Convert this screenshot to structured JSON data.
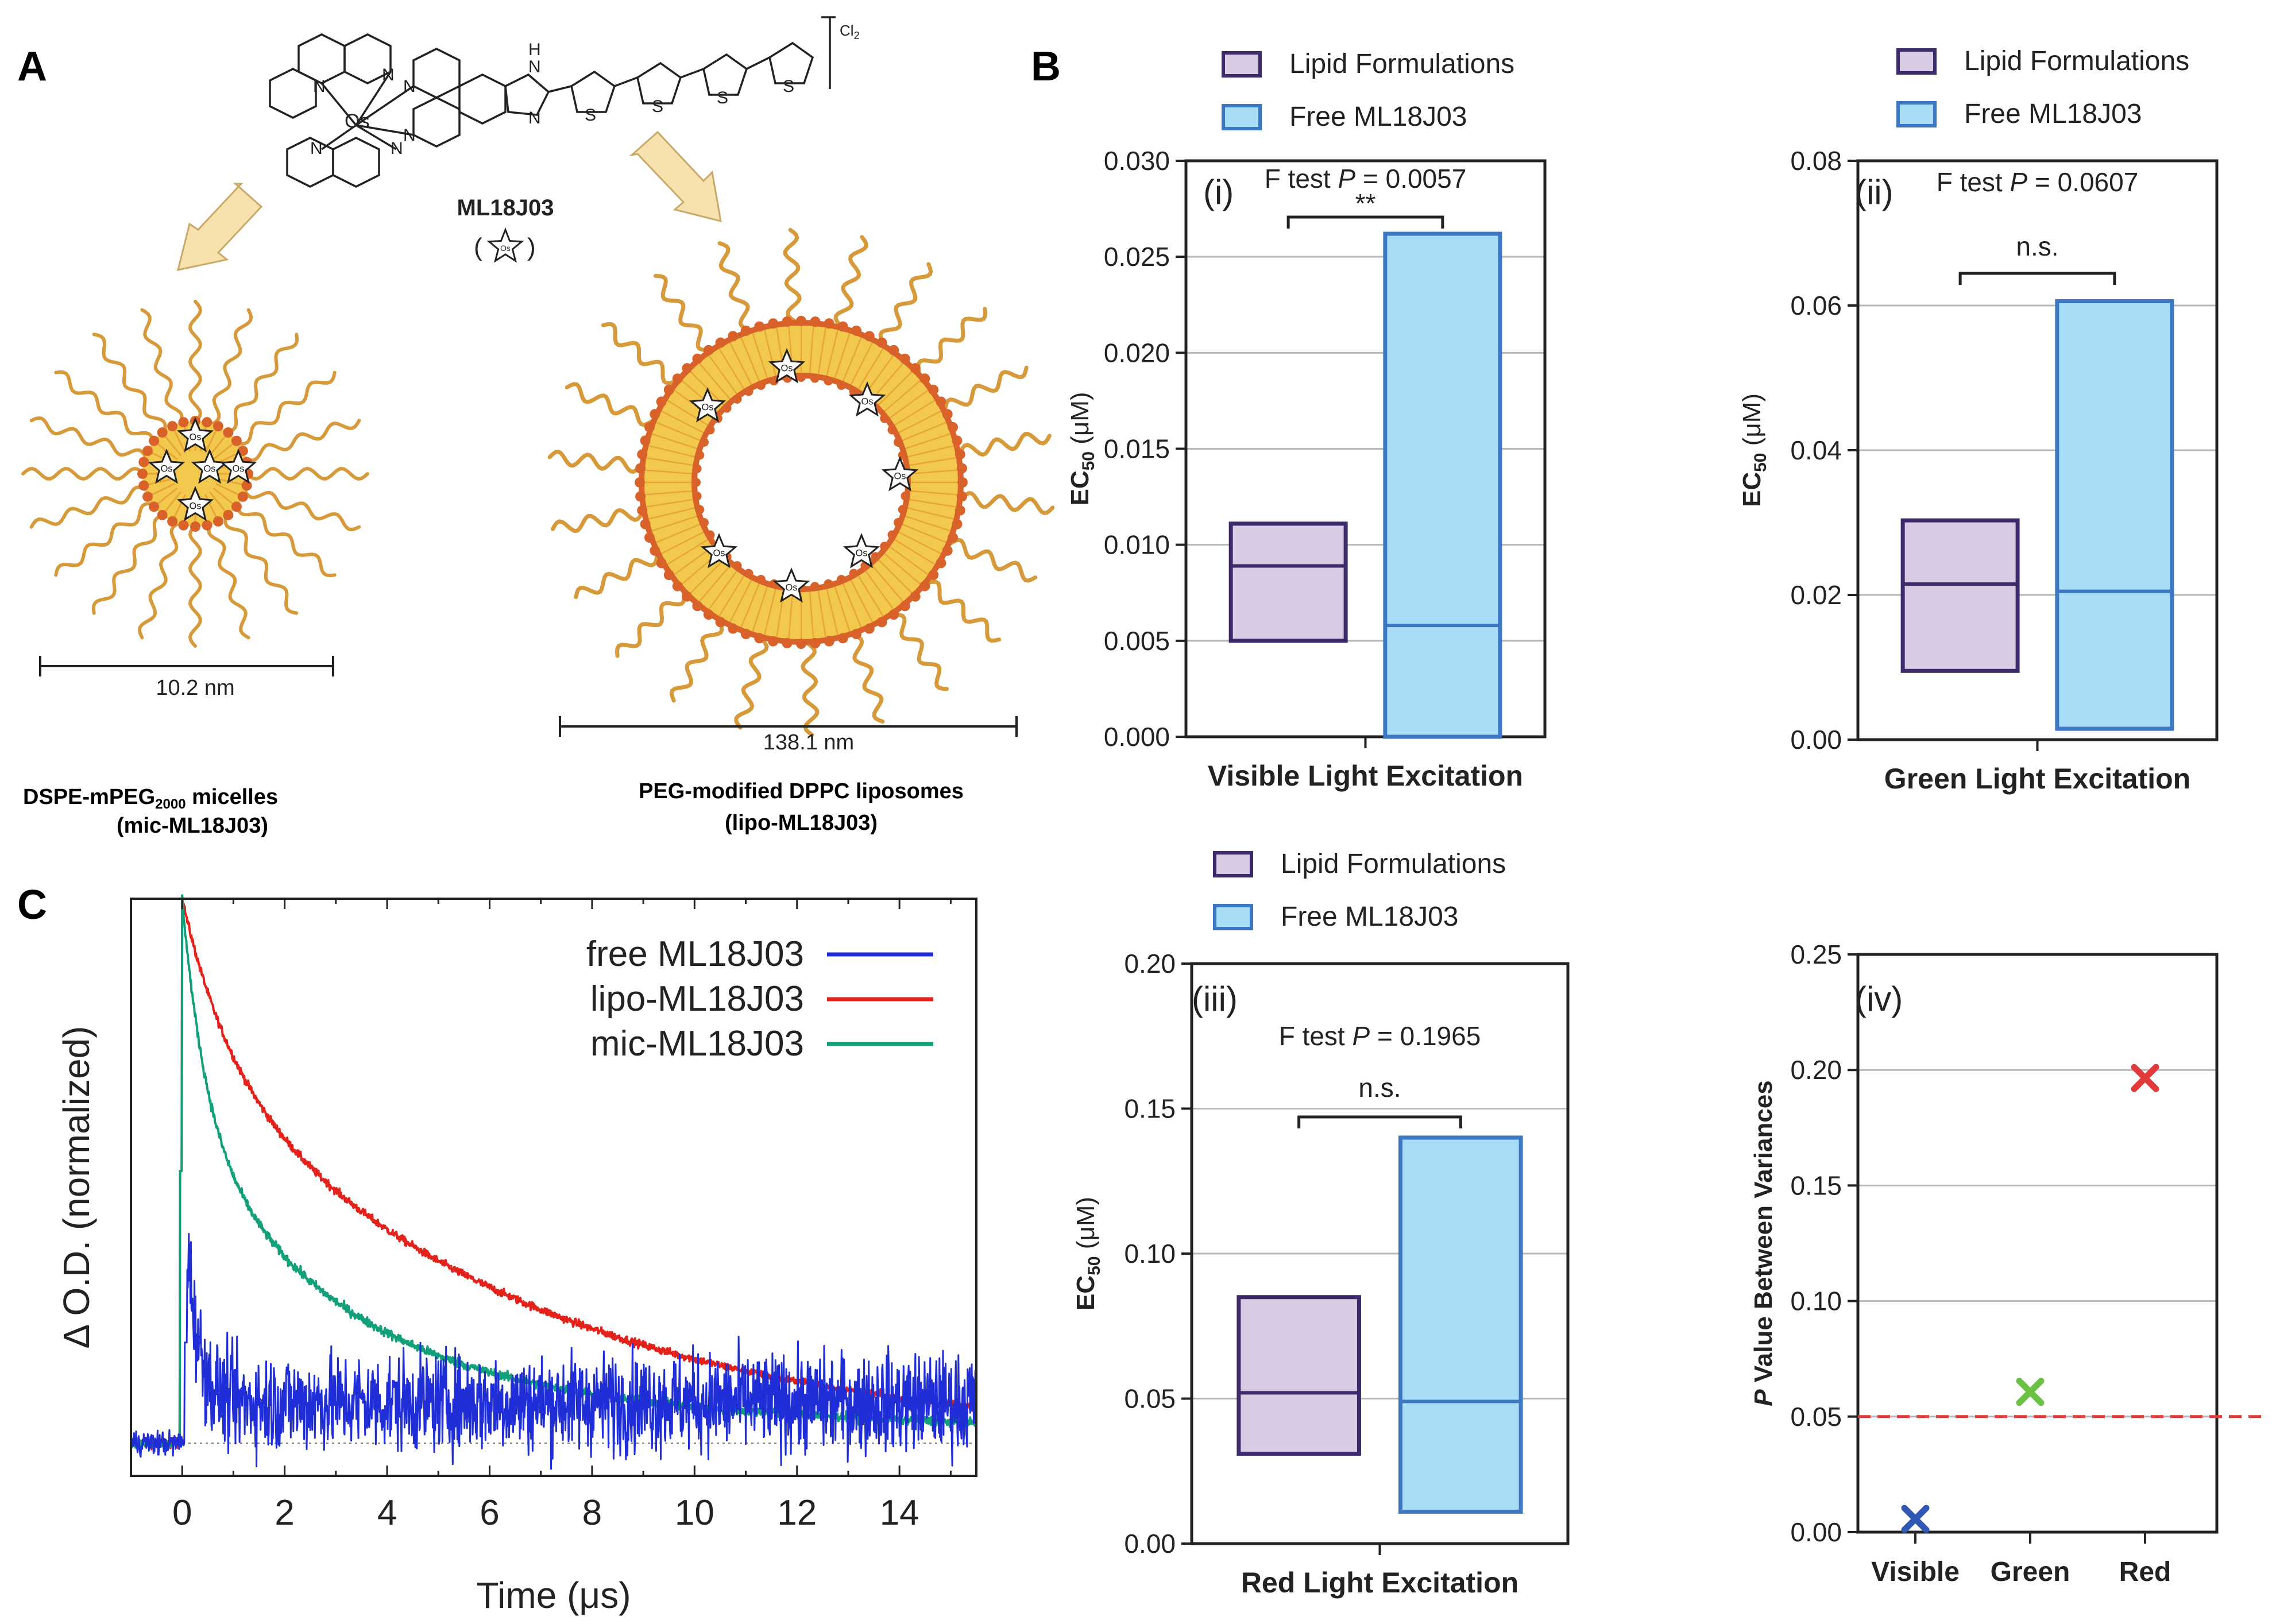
{
  "panel_labels": {
    "a": "A",
    "b": "B",
    "c": "C"
  },
  "panel_a": {
    "compound_name": "ML18J03",
    "counter_ion": "Cl",
    "counter_ion_sub": "2",
    "metal": "Os",
    "atom_n": "N",
    "atom_h": "H",
    "atom_s": "S",
    "star_label": "Os",
    "micelle": {
      "size": "10.2 nm",
      "name_pre": "DSPE-mPEG",
      "name_sub": "2000",
      "name_post": " micelles",
      "abbrev": "(mic-ML18J03)"
    },
    "liposome": {
      "size": "138.1 nm",
      "name": "PEG-modified DPPC liposomes",
      "abbrev": "(lipo-ML18J03)"
    },
    "colors": {
      "lipid": "#f2c94c",
      "shell": "#d9622b",
      "peg": "#d79a3a",
      "arrow": "#f7e2ad"
    }
  },
  "legend": {
    "lipid": "Lipid Formulations",
    "free": "Free ML18J03"
  },
  "colors": {
    "lipid_fill": "#d8cbe4",
    "lipid_edge": "#3c2a6b",
    "free_fill": "#a8dcf7",
    "free_edge": "#3b77c2",
    "grid": "#b8b8b8",
    "ref_line": "#e03a3a",
    "visible": "#2f58b3",
    "green": "#6ac143",
    "red": "#e03a3a",
    "trace_free": "#1f2ed6",
    "trace_lipo": "#e3221c",
    "trace_mic": "#12a07a"
  },
  "chart_data": [
    {
      "id": "B-i",
      "type": "box",
      "roman": "(i)",
      "ylabel_pre": "EC",
      "ylabel_sub": "50",
      "ylabel_post": " (μM)",
      "xlabel": "Visible Light Excitation",
      "ylim": [
        0,
        0.03
      ],
      "yticks": [
        0.0,
        0.005,
        0.01,
        0.015,
        0.02,
        0.025,
        0.03
      ],
      "ytick_labels": [
        "0.000",
        "0.005",
        "0.010",
        "0.015",
        "0.020",
        "0.025",
        "0.030"
      ],
      "series": [
        {
          "name": "Lipid Formulations",
          "min": 0.005,
          "median": 0.0089,
          "max": 0.0111
        },
        {
          "name": "Free ML18J03",
          "min": 0.0,
          "median": 0.0058,
          "max": 0.0262
        }
      ],
      "stat_pre": "F test ",
      "stat_p": "P",
      "stat_post": " = 0.0057",
      "sig": "**"
    },
    {
      "id": "B-ii",
      "type": "box",
      "roman": "(ii)",
      "ylabel_pre": "EC",
      "ylabel_sub": "50",
      "ylabel_post": " (μM)",
      "xlabel": "Green Light Excitation",
      "ylim": [
        0,
        0.08
      ],
      "yticks": [
        0,
        0.02,
        0.04,
        0.06,
        0.08
      ],
      "ytick_labels": [
        "0.00",
        "0.02",
        "0.04",
        "0.06",
        "0.08"
      ],
      "series": [
        {
          "name": "Lipid Formulations",
          "min": 0.0095,
          "median": 0.0215,
          "max": 0.0303
        },
        {
          "name": "Free ML18J03",
          "min": 0.0015,
          "median": 0.0205,
          "max": 0.0606
        }
      ],
      "stat_pre": "F test ",
      "stat_p": "P",
      "stat_post": " = 0.0607",
      "sig": "n.s."
    },
    {
      "id": "B-iii",
      "type": "box",
      "roman": "(iii)",
      "ylabel_pre": "EC",
      "ylabel_sub": "50",
      "ylabel_post": " (μM)",
      "xlabel": "Red Light Excitation",
      "ylim": [
        0,
        0.2
      ],
      "yticks": [
        0,
        0.05,
        0.1,
        0.15,
        0.2
      ],
      "ytick_labels": [
        "0.00",
        "0.05",
        "0.10",
        "0.15",
        "0.20"
      ],
      "series": [
        {
          "name": "Lipid Formulations",
          "min": 0.031,
          "median": 0.052,
          "max": 0.085
        },
        {
          "name": "Free ML18J03",
          "min": 0.011,
          "median": 0.049,
          "max": 0.14
        }
      ],
      "stat_pre": "F test ",
      "stat_p": "P",
      "stat_post": " = 0.1965",
      "sig": "n.s."
    },
    {
      "id": "B-iv",
      "type": "scatter",
      "roman": "(iv)",
      "ylabel_p": "P",
      "ylabel_post": " Value Between Variances",
      "categories": [
        "Visible",
        "Green",
        "Red"
      ],
      "values": [
        0.0057,
        0.0607,
        0.1965
      ],
      "ylim": [
        0,
        0.25
      ],
      "yticks": [
        0,
        0.05,
        0.1,
        0.15,
        0.2,
        0.25
      ],
      "ytick_labels": [
        "0.00",
        "0.05",
        "0.10",
        "0.15",
        "0.20",
        "0.25"
      ],
      "threshold": 0.05
    },
    {
      "id": "C",
      "type": "line",
      "xlabel": "Time (μs)",
      "ylabel": "Δ O.D. (normalized)",
      "xlim": [
        -1,
        15.5
      ],
      "ylim": [
        -0.06,
        1.0
      ],
      "xticks": [
        0,
        2,
        4,
        6,
        8,
        10,
        12,
        14
      ],
      "xtick_labels": [
        "0",
        "2",
        "4",
        "6",
        "8",
        "10",
        "12",
        "14"
      ],
      "series": [
        {
          "name": "free ML18J03",
          "key": "free",
          "model": {
            "t0": 0.1,
            "peak": 0.37,
            "amps": [
              0.8
            ],
            "taus": [
              0.22
            ],
            "plateau": 0.2,
            "noise": 0.085
          }
        },
        {
          "name": "lipo-ML18J03",
          "key": "lipo",
          "model": {
            "t0": 0.0,
            "peak": 1.0,
            "amps": [
              0.28,
              0.72
            ],
            "taus": [
              0.9,
              6.5
            ],
            "plateau": 0.0,
            "noise": 0.007
          }
        },
        {
          "name": "mic-ML18J03",
          "key": "mic",
          "model": {
            "t0": 0.0,
            "peak": 1.0,
            "amps": [
              0.4,
              0.5,
              0.1
            ],
            "taus": [
              0.45,
              2.9,
              15.0
            ],
            "plateau": 0.0,
            "noise": 0.008
          }
        }
      ]
    }
  ]
}
